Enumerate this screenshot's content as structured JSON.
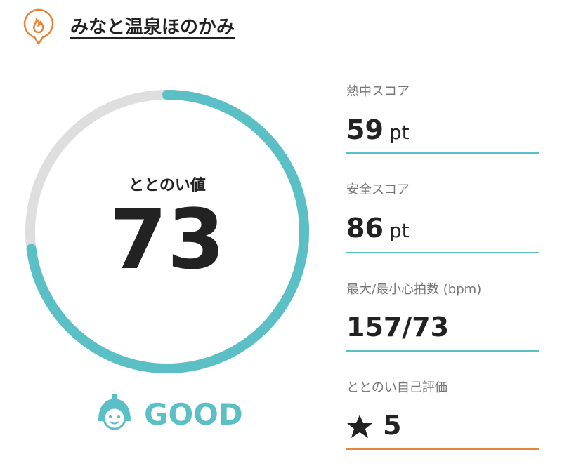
{
  "header": {
    "title": "みなと温泉ほのかみ"
  },
  "gauge": {
    "label": "ととのい値",
    "value": 73
  },
  "rating": {
    "label": "GOOD"
  },
  "metrics": [
    {
      "label": "熱中スコア",
      "value": 59,
      "unit": "pt"
    },
    {
      "label": "安全スコア",
      "value": 86,
      "unit": "pt"
    },
    {
      "label": "最大/最小心拍数 (bpm)",
      "value": "157/73"
    },
    {
      "label": "ととのい自己評価",
      "value": 5
    }
  ]
}
